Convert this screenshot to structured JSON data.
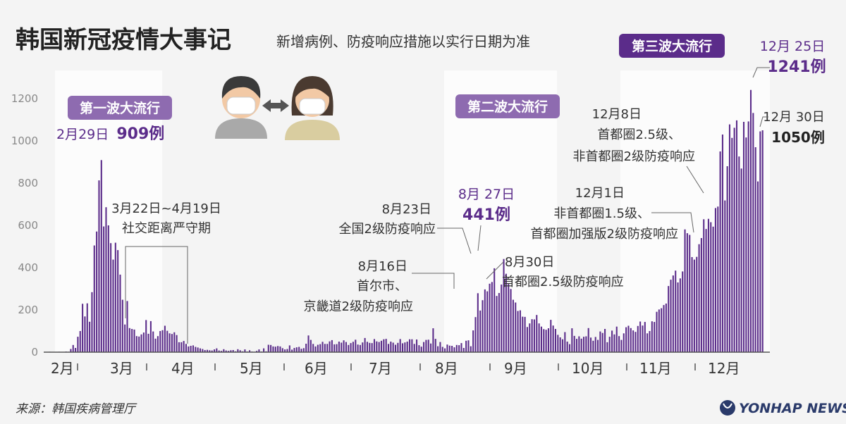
{
  "header": {
    "title": "韩国新冠疫情大事记",
    "subtitle": "新增病例、防疫响应措施以实行日期为准"
  },
  "source": "来源：韩国疾病管理厅",
  "logo": {
    "text": "YONHAP NEWS",
    "icon": "yonhap-logo-icon"
  },
  "illustration": {
    "icons": [
      "masked-man-icon",
      "two-way-arrow-icon",
      "masked-woman-icon"
    ]
  },
  "colors": {
    "bar": "#5b2c8a",
    "wave_band": "#ffffff",
    "label_bg": "#8e6bb0",
    "accent": "#5b2c8a"
  },
  "waves": [
    {
      "label": "第一波大流行"
    },
    {
      "label": "第二波大流行"
    },
    {
      "label": "第三波大流行"
    }
  ],
  "annotations": {
    "peak1_date": "2月29日",
    "peak1_value": "909例",
    "distancing_line1": "3月22日~4月19日",
    "distancing_line2": "社交距离严守期",
    "aug16_line1": "8月16日",
    "aug16_line2": "首尔市、",
    "aug16_line3": "京畿道2级防疫响应",
    "aug23_line1": "8月23日",
    "aug23_line2": "全国2级防疫响应",
    "aug27_date": "8月 27日",
    "aug27_value": "441例",
    "aug30_line1": "8月30日",
    "aug30_line2": "首都圈2.5级防疫响应",
    "dec1_line1": "12月1日",
    "dec1_line2": "非首都圈1.5级、",
    "dec1_line3": "首都圈加强版2级防疫响应",
    "dec8_line1": "12月8日",
    "dec8_line2": "首都圈2.5级、",
    "dec8_line3": "非首都圈2级防疫响应",
    "dec25_date": "12月 25日",
    "dec25_value": "1241例",
    "dec30_date": "12月 30日",
    "dec30_value": "1050例"
  },
  "chart_data": {
    "type": "bar",
    "title": "韩国新冠疫情大事记",
    "ylim": [
      0,
      1300
    ],
    "yticks": [
      0,
      200,
      400,
      600,
      800,
      1000,
      1200
    ],
    "months": [
      "2月",
      "3月",
      "4月",
      "5月",
      "6月",
      "7月",
      "8月",
      "9月",
      "10月",
      "11月",
      "12月"
    ],
    "grid": false,
    "day_index_note_removed": true,
    "values": [
      1,
      2,
      1,
      0,
      1,
      2,
      0,
      1,
      3,
      2,
      15,
      34,
      20,
      73,
      100,
      229,
      169,
      231,
      144,
      284,
      505,
      571,
      813,
      909,
      595,
      686,
      600,
      516,
      438,
      518,
      483,
      367,
      248,
      131,
      242,
      114,
      110,
      107,
      76,
      74,
      84,
      93,
      152,
      87,
      147,
      98,
      64,
      76,
      100,
      104,
      125,
      101,
      89,
      86,
      94,
      81,
      47,
      47,
      53,
      39,
      27,
      30,
      32,
      25,
      22,
      18,
      15,
      10,
      11,
      9,
      8,
      13,
      18,
      8,
      6,
      14,
      8,
      6,
      9,
      10,
      4,
      14,
      9,
      4,
      13,
      3,
      9,
      3,
      2,
      6,
      13,
      3,
      18,
      4,
      35,
      34,
      27,
      26,
      29,
      27,
      19,
      13,
      15,
      32,
      12,
      20,
      23,
      25,
      16,
      19,
      40,
      79,
      58,
      39,
      27,
      35,
      38,
      49,
      39,
      39,
      51,
      57,
      37,
      38,
      50,
      45,
      56,
      48,
      34,
      43,
      49,
      59,
      36,
      34,
      46,
      67,
      49,
      44,
      43,
      62,
      51,
      48,
      54,
      61,
      63,
      39,
      50,
      45,
      35,
      44,
      62,
      42,
      46,
      50,
      61,
      61,
      39,
      60,
      33,
      26,
      48,
      58,
      59,
      41,
      113,
      63,
      28,
      48,
      25,
      18,
      36,
      31,
      30,
      23,
      34,
      33,
      43,
      20,
      54,
      56,
      28,
      103,
      166,
      279,
      197,
      246,
      297,
      288,
      324,
      332,
      397,
      266,
      280,
      320,
      441,
      371,
      323,
      299,
      248,
      235,
      195,
      198,
      168,
      167,
      119,
      136,
      156,
      155,
      176,
      136,
      121,
      109,
      106,
      113,
      153,
      126,
      110,
      82,
      70,
      61,
      95,
      50,
      38,
      113,
      77,
      63,
      75,
      64,
      73,
      75,
      114,
      69,
      54,
      72,
      58,
      98,
      91,
      110,
      47,
      73,
      102,
      84,
      121,
      76,
      58,
      89,
      118,
      125,
      114,
      103,
      96,
      124,
      145,
      126,
      143,
      89,
      100,
      146,
      143,
      191,
      202,
      208,
      223,
      230,
      313,
      343,
      363,
      386,
      330,
      349,
      382,
      581,
      563,
      555,
      450,
      438,
      451,
      511,
      540,
      629,
      583,
      631,
      615,
      594,
      682,
      689,
      950,
      1030,
      718,
      880,
      1078,
      1014,
      1062,
      1097,
      926,
      869,
      1090,
      1016,
      1092,
      1241,
      1132,
      970,
      808,
      1045,
      1050
    ]
  }
}
